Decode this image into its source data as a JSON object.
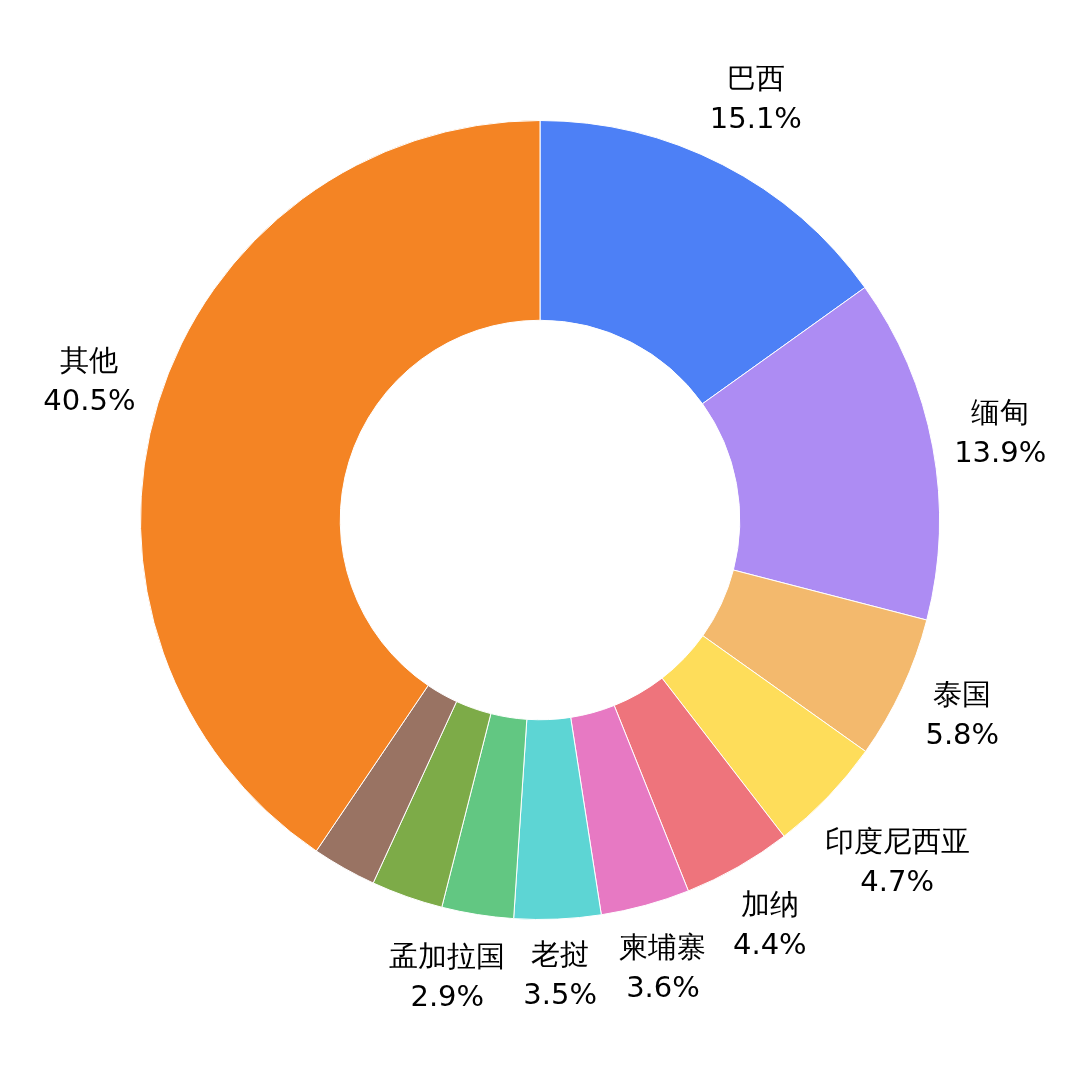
{
  "chart_data": {
    "type": "donut",
    "categories": [
      "巴西",
      "缅甸",
      "泰国",
      "印度尼西亚",
      "加纳",
      "柬埔寨",
      "老挝",
      "孟加拉国",
      null,
      null,
      "其他"
    ],
    "values": [
      15.1,
      13.9,
      5.8,
      4.7,
      4.4,
      3.6,
      3.5,
      2.9,
      2.9,
      2.6,
      40.5
    ],
    "colors": [
      "#4d80f6",
      "#ad8cf3",
      "#f3b96d",
      "#fedd5a",
      "#ee747c",
      "#e779c3",
      "#5dd5d4",
      "#62c782",
      "#7dab48",
      "#997363",
      "#f48424"
    ],
    "value_labels": [
      "15.1%",
      "13.9%",
      "5.8%",
      "4.7%",
      "4.4%",
      "3.6%",
      "3.5%",
      "2.9%",
      null,
      null,
      "40.5%"
    ]
  }
}
